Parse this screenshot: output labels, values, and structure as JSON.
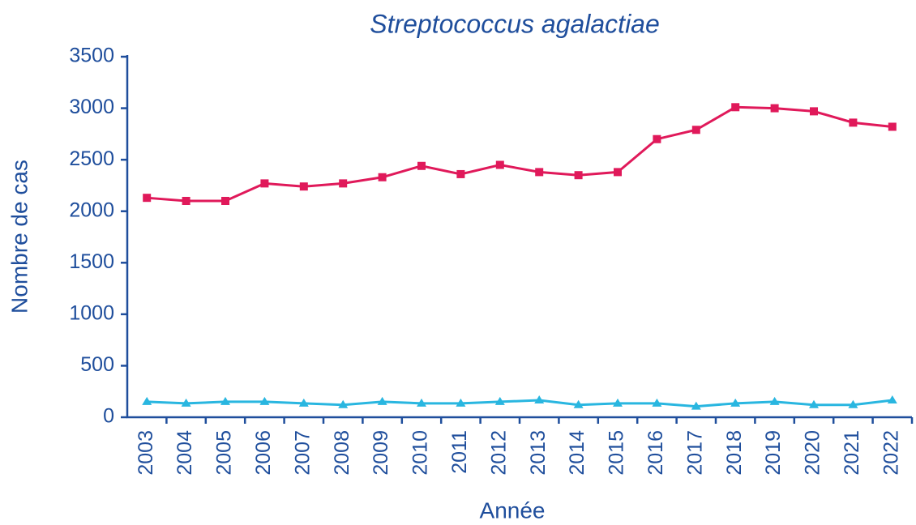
{
  "chart_data": {
    "type": "line",
    "title": "Streptococcus agalactiae",
    "x_label": "Année",
    "y_label": "Nombre de cas",
    "categories": [
      "2003",
      "2004",
      "2005",
      "2006",
      "2007",
      "2008",
      "2009",
      "2010",
      "2011",
      "2012",
      "2013",
      "2014",
      "2015",
      "2016",
      "2017",
      "2018",
      "2019",
      "2020",
      "2021",
      "2022"
    ],
    "series": [
      {
        "color": "#e0195a",
        "marker": "square",
        "values": [
          2130,
          2100,
          2100,
          2270,
          2240,
          2270,
          2330,
          2440,
          2360,
          2450,
          2380,
          2350,
          2380,
          2700,
          2790,
          3010,
          3000,
          2970,
          2860,
          2820
        ]
      },
      {
        "color": "#29b6e0",
        "marker": "triangle",
        "values": [
          150,
          135,
          150,
          150,
          135,
          120,
          150,
          135,
          135,
          150,
          165,
          120,
          135,
          135,
          105,
          135,
          150,
          120,
          120,
          165
        ]
      }
    ],
    "ylim": [
      0,
      3500
    ],
    "yticks": [
      0,
      500,
      1000,
      1500,
      2000,
      2500,
      3000,
      3500
    ]
  }
}
